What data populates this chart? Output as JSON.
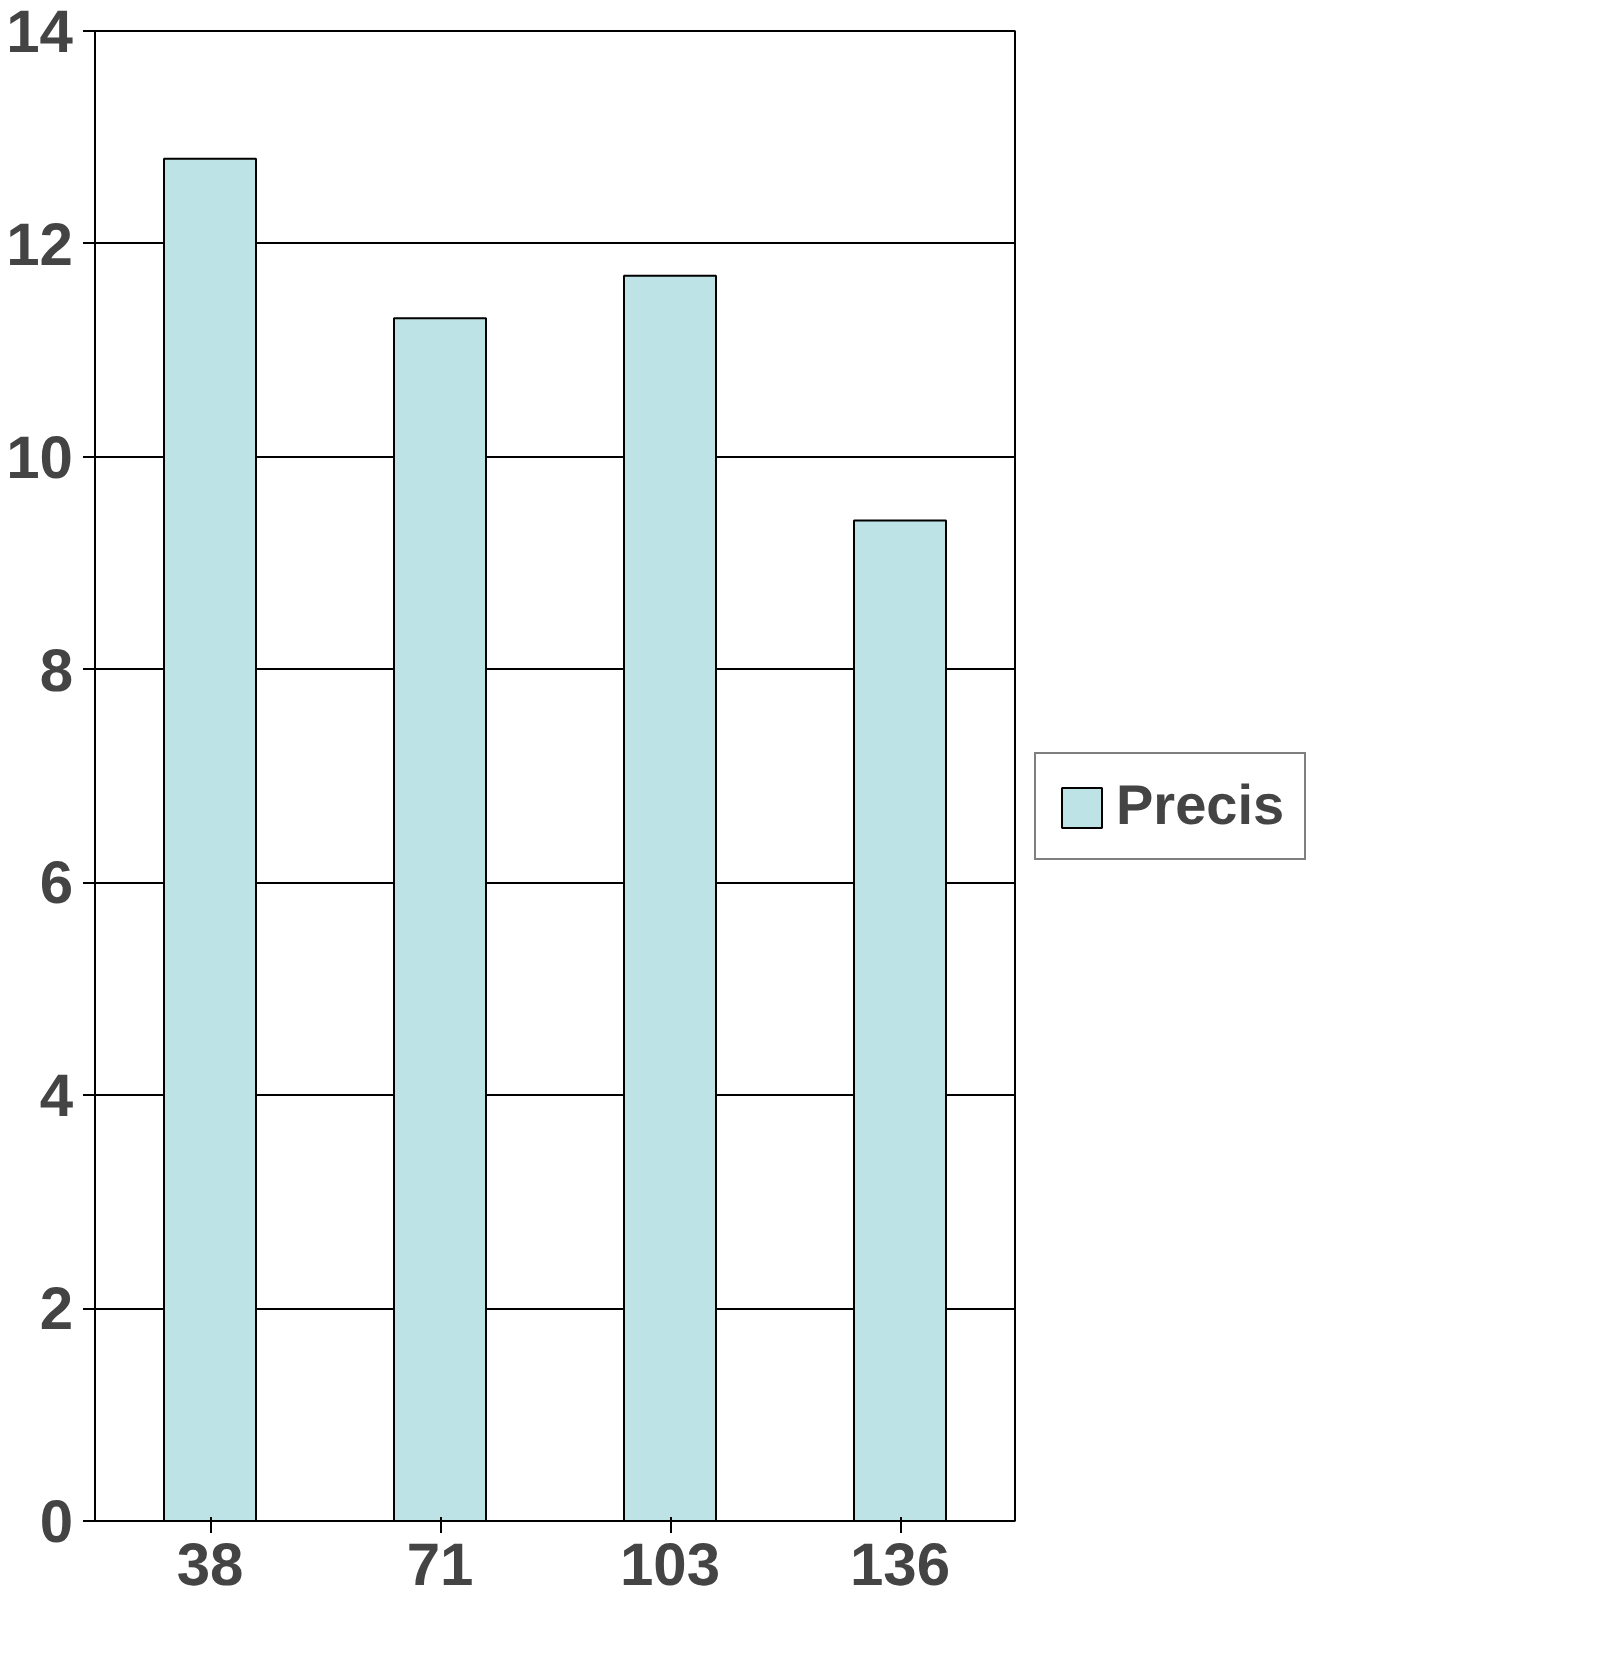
{
  "chart_data": {
    "type": "bar",
    "categories": [
      "38",
      "71",
      "103",
      "136"
    ],
    "series": [
      {
        "name": "Precis",
        "color": "#bde3e6",
        "values": [
          12.8,
          11.3,
          11.7,
          9.4
        ]
      }
    ],
    "ylim": [
      0,
      14
    ],
    "yticks": [
      0,
      2,
      4,
      6,
      8,
      10,
      12,
      14
    ],
    "grid": "y",
    "legend": "right"
  }
}
